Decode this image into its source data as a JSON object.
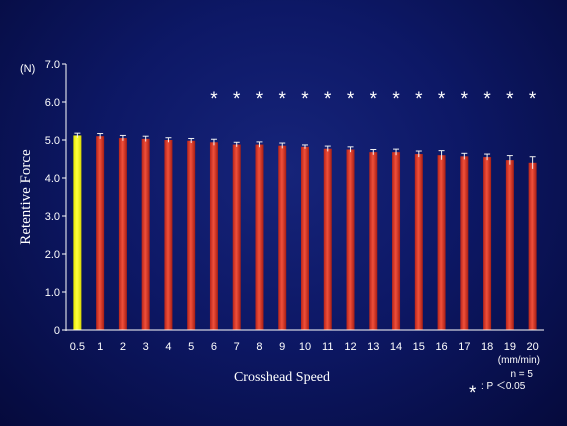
{
  "chart_data": {
    "type": "bar",
    "categories": [
      "0.5",
      "1",
      "2",
      "3",
      "4",
      "5",
      "6",
      "7",
      "8",
      "9",
      "10",
      "11",
      "12",
      "13",
      "14",
      "15",
      "16",
      "17",
      "18",
      "19",
      "20"
    ],
    "values": [
      5.12,
      5.1,
      5.05,
      5.03,
      5.0,
      4.98,
      4.94,
      4.88,
      4.88,
      4.85,
      4.82,
      4.77,
      4.75,
      4.68,
      4.68,
      4.63,
      4.6,
      4.57,
      4.55,
      4.47,
      4.4
    ],
    "errors": [
      0.06,
      0.07,
      0.07,
      0.07,
      0.06,
      0.06,
      0.08,
      0.06,
      0.07,
      0.07,
      0.05,
      0.07,
      0.07,
      0.07,
      0.08,
      0.08,
      0.12,
      0.08,
      0.08,
      0.12,
      0.16
    ],
    "significant": [
      false,
      false,
      false,
      false,
      false,
      false,
      true,
      true,
      true,
      true,
      true,
      true,
      true,
      true,
      true,
      true,
      true,
      true,
      true,
      true,
      true
    ],
    "ylim": [
      0,
      7.0
    ],
    "y_ticks": [
      "0",
      "1.0",
      "2.0",
      "3.0",
      "4.0",
      "5.0",
      "6.0",
      "7.0"
    ],
    "y_unit": "(N)",
    "ylabel": "Retentive Force",
    "xlabel": "Crosshead Speed",
    "x_unit": "(mm/min)",
    "n_note": "n = 5",
    "sig_symbol": "*",
    "sig_note": ": P ＜0.05",
    "colors": {
      "baseline_bar": "#ffff00",
      "bar": "#e03828",
      "axis": "#ffffff",
      "background": "#0d1866"
    }
  }
}
